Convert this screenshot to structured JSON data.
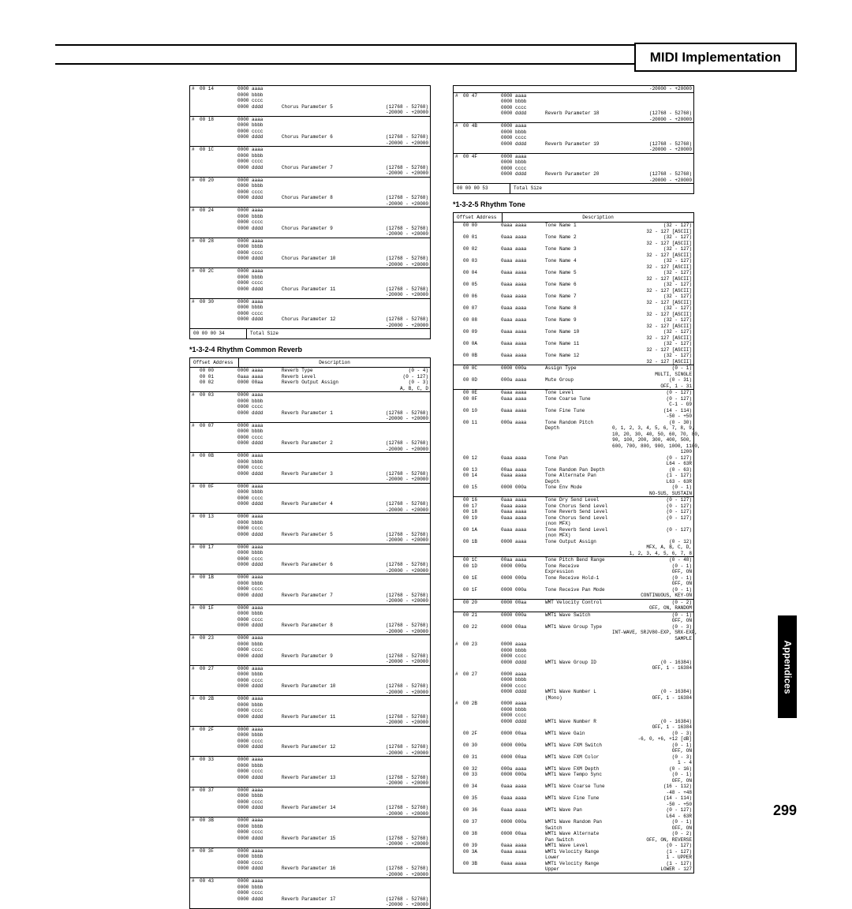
{
  "header_title": "MIDI Implementation",
  "side_tab": "Appendices",
  "page_number": "299",
  "offset_label": "Offset\n   Address",
  "description_label": "Description",
  "rhythm_reverb_title": "*1-3-2-4 Rhythm Common Reverb",
  "rhythm_tone_title": "*1-3-2-5 Rhythm Tone",
  "chorus_block": {
    "rows": [
      {
        "m": "#",
        "o": "00 14",
        "v": [
          "0000 aaaa",
          "0000 bbbb",
          "0000 cccc",
          "0000 dddd"
        ],
        "d": "Chorus Parameter 5",
        "r": "(12768 - 52768)\n-20000 - +20000"
      },
      {
        "m": "#",
        "o": "00 18",
        "v": [
          "0000 aaaa",
          "0000 bbbb",
          "0000 cccc",
          "0000 dddd"
        ],
        "d": "Chorus Parameter 6",
        "r": "(12768 - 52768)\n-20000 - +20000"
      },
      {
        "m": "#",
        "o": "00 1C",
        "v": [
          "0000 aaaa",
          "0000 bbbb",
          "0000 cccc",
          "0000 dddd"
        ],
        "d": "Chorus Parameter 7",
        "r": "(12768 - 52768)\n-20000 - +20000"
      },
      {
        "m": "#",
        "o": "00 20",
        "v": [
          "0000 aaaa",
          "0000 bbbb",
          "0000 cccc",
          "0000 dddd"
        ],
        "d": "Chorus Parameter 8",
        "r": "(12768 - 52768)\n-20000 - +20000"
      },
      {
        "m": "#",
        "o": "00 24",
        "v": [
          "0000 aaaa",
          "0000 bbbb",
          "0000 cccc",
          "0000 dddd"
        ],
        "d": "Chorus Parameter 9",
        "r": "(12768 - 52768)\n-20000 - +20000"
      },
      {
        "m": "#",
        "o": "00 28",
        "v": [
          "0000 aaaa",
          "0000 bbbb",
          "0000 cccc",
          "0000 dddd"
        ],
        "d": "Chorus Parameter 10",
        "r": "(12768 - 52768)\n-20000 - +20000"
      },
      {
        "m": "#",
        "o": "00 2C",
        "v": [
          "0000 aaaa",
          "0000 bbbb",
          "0000 cccc",
          "0000 dddd"
        ],
        "d": "Chorus Parameter 11",
        "r": "(12768 - 52768)\n-20000 - +20000"
      },
      {
        "m": "#",
        "o": "00 30",
        "v": [
          "0000 aaaa",
          "0000 bbbb",
          "0000 cccc",
          "0000 dddd"
        ],
        "d": "Chorus Parameter 12",
        "r": "(12768 - 52768)\n-20000 - +20000"
      }
    ],
    "total_off": "00 00 00 34",
    "total_label": "Total Size"
  },
  "reverb_block": {
    "initial": [
      {
        "o": "00 00",
        "v": "0000 aaaa",
        "d": "Reverb Type",
        "r": "(0 - 4)"
      },
      {
        "o": "00 01",
        "v": "0aaa aaaa",
        "d": "Reverb Level",
        "r": "(0 - 127)"
      },
      {
        "o": "00 02",
        "v": "0000 00aa",
        "d": "Reverb Output Assign",
        "r": "(0 - 3)\nA, B, C, D"
      }
    ],
    "rows": [
      {
        "m": "#",
        "o": "00 03",
        "d": "Reverb Parameter 1"
      },
      {
        "m": "#",
        "o": "00 07",
        "d": "Reverb Parameter 2"
      },
      {
        "m": "#",
        "o": "00 0B",
        "d": "Reverb Parameter 3"
      },
      {
        "m": "#",
        "o": "00 0F",
        "d": "Reverb Parameter 4"
      },
      {
        "m": "#",
        "o": "00 13",
        "d": "Reverb Parameter 5"
      },
      {
        "m": "#",
        "o": "00 17",
        "d": "Reverb Parameter 6"
      },
      {
        "m": "#",
        "o": "00 1B",
        "d": "Reverb Parameter 7"
      },
      {
        "m": "#",
        "o": "00 1F",
        "d": "Reverb Parameter 8"
      },
      {
        "m": "#",
        "o": "00 23",
        "d": "Reverb Parameter 9"
      },
      {
        "m": "#",
        "o": "00 27",
        "d": "Reverb Parameter 10"
      },
      {
        "m": "#",
        "o": "00 2B",
        "d": "Reverb Parameter 11"
      },
      {
        "m": "#",
        "o": "00 2F",
        "d": "Reverb Parameter 12"
      },
      {
        "m": "#",
        "o": "00 33",
        "d": "Reverb Parameter 13"
      },
      {
        "m": "#",
        "o": "00 37",
        "d": "Reverb Parameter 14"
      },
      {
        "m": "#",
        "o": "00 3B",
        "d": "Reverb Parameter 15"
      },
      {
        "m": "#",
        "o": "00 3F",
        "d": "Reverb Parameter 16"
      },
      {
        "m": "#",
        "o": "00 43",
        "d": "Reverb Parameter 17"
      }
    ],
    "vals": [
      "0000 aaaa",
      "0000 bbbb",
      "0000 cccc",
      "0000 dddd"
    ],
    "range": "(12768 - 52768)\n-20000 - +20000"
  },
  "reverb_cont": {
    "lead_range": "-20000 - +20000",
    "rows": [
      {
        "m": "#",
        "o": "00 47",
        "d": "Reverb Parameter 18"
      },
      {
        "m": "#",
        "o": "00 4B",
        "d": "Reverb Parameter 19"
      },
      {
        "m": "#",
        "o": "00 4F",
        "d": "Reverb Parameter 20"
      }
    ],
    "vals": [
      "0000 aaaa",
      "0000 bbbb",
      "0000 cccc",
      "0000 dddd"
    ],
    "range": "(12768 - 52768)\n-20000 - +20000",
    "total_off": "00 00 00 53",
    "total_label": "Total Size"
  },
  "tone_block": {
    "sections": [
      [
        {
          "o": "00 00",
          "v": "0aaa aaaa",
          "d": "Tone Name 1",
          "r": "(32 - 127)\n32 - 127 [ASCII]"
        },
        {
          "o": "00 01",
          "v": "0aaa aaaa",
          "d": "Tone Name 2",
          "r": "(32 - 127)\n32 - 127 [ASCII]"
        },
        {
          "o": "00 02",
          "v": "0aaa aaaa",
          "d": "Tone Name 3",
          "r": "(32 - 127)\n32 - 127 [ASCII]"
        },
        {
          "o": "00 03",
          "v": "0aaa aaaa",
          "d": "Tone Name 4",
          "r": "(32 - 127)\n32 - 127 [ASCII]"
        },
        {
          "o": "00 04",
          "v": "0aaa aaaa",
          "d": "Tone Name 5",
          "r": "(32 - 127)\n32 - 127 [ASCII]"
        },
        {
          "o": "00 05",
          "v": "0aaa aaaa",
          "d": "Tone Name 6",
          "r": "(32 - 127)\n32 - 127 [ASCII]"
        },
        {
          "o": "00 06",
          "v": "0aaa aaaa",
          "d": "Tone Name 7",
          "r": "(32 - 127)\n32 - 127 [ASCII]"
        },
        {
          "o": "00 07",
          "v": "0aaa aaaa",
          "d": "Tone Name 8",
          "r": "(32 - 127)\n32 - 127 [ASCII]"
        },
        {
          "o": "00 08",
          "v": "0aaa aaaa",
          "d": "Tone Name 9",
          "r": "(32 - 127)\n32 - 127 [ASCII]"
        },
        {
          "o": "00 09",
          "v": "0aaa aaaa",
          "d": "Tone Name 10",
          "r": "(32 - 127)\n32 - 127 [ASCII]"
        },
        {
          "o": "00 0A",
          "v": "0aaa aaaa",
          "d": "Tone Name 11",
          "r": "(32 - 127)\n32 - 127 [ASCII]"
        },
        {
          "o": "00 0B",
          "v": "0aaa aaaa",
          "d": "Tone Name 12",
          "r": "(32 - 127)\n32 - 127 [ASCII]"
        }
      ],
      [
        {
          "o": "00 0C",
          "v": "0000 000a",
          "d": "Assign Type",
          "r": "(0 - 1)\nMULTI, SINGLE"
        },
        {
          "o": "00 0D",
          "v": "000a aaaa",
          "d": "Mute Group",
          "r": "(0 - 31)\nOFF, 1 - 31"
        }
      ],
      [
        {
          "o": "00 0E",
          "v": "0aaa aaaa",
          "d": "Tone Level",
          "r": "(0 - 127)"
        },
        {
          "o": "00 0F",
          "v": "0aaa aaaa",
          "d": "Tone Coarse Tune",
          "r": "(0 - 127)\nC-1 - G9"
        },
        {
          "o": "00 10",
          "v": "0aaa aaaa",
          "d": "Tone Fine Tune",
          "r": "(14 - 114)\n-50 - +50"
        },
        {
          "o": "00 11",
          "v": "000a aaaa",
          "d": "Tone Random Pitch Depth",
          "r": "(0 - 30)\n0, 1, 2, 3, 4, 5, 6, 7, 8, 9,\n10, 20, 30, 40, 50, 60, 70, 80,\n90, 100, 200, 300, 400, 500,\n600, 700, 800, 900, 1000, 1100,\n1200"
        },
        {
          "o": "00 12",
          "v": "0aaa aaaa",
          "d": "Tone Pan",
          "r": "(0 - 127)\nL64 - 63R"
        },
        {
          "o": "00 13",
          "v": "00aa aaaa",
          "d": "Tone Random Pan Depth",
          "r": "(0 - 63)"
        },
        {
          "o": "00 14",
          "v": "0aaa aaaa",
          "d": "Tone Alternate Pan Depth",
          "r": "(1 - 127)\nL63 - 63R"
        },
        {
          "o": "00 15",
          "v": "0000 000a",
          "d": "Tone Env Mode",
          "r": "(0 - 1)\nNO-SUS, SUSTAIN"
        }
      ],
      [
        {
          "o": "00 16",
          "v": "0aaa aaaa",
          "d": "Tone Dry Send Level",
          "r": "(0 - 127)"
        },
        {
          "o": "00 17",
          "v": "0aaa aaaa",
          "d": "Tone Chorus Send Level",
          "r": "(0 - 127)"
        },
        {
          "o": "00 18",
          "v": "0aaa aaaa",
          "d": "Tone Reverb Send Level",
          "r": "(0 - 127)"
        },
        {
          "o": "00 19",
          "v": "0aaa aaaa",
          "d": "Tone Chorus Send Level (non MFX)",
          "r": "(0 - 127)"
        },
        {
          "o": "00 1A",
          "v": "0aaa aaaa",
          "d": "Tone Reverb Send Level (non MFX)",
          "r": "(0 - 127)"
        },
        {
          "o": "00 1B",
          "v": "0000 aaaa",
          "d": "Tone Output Assign",
          "r": "(0 - 12)\nMFX, A, B, C, D,\n1, 2, 3, 4, 5, 6, 7, 8"
        }
      ],
      [
        {
          "o": "00 1C",
          "v": "00aa aaaa",
          "d": "Tone Pitch Bend Range",
          "r": "(0 - 48)"
        },
        {
          "o": "00 1D",
          "v": "0000 000a",
          "d": "Tone Receive Expression",
          "r": "(0 - 1)\nOFF, ON"
        },
        {
          "o": "00 1E",
          "v": "0000 000a",
          "d": "Tone Receive Hold-1",
          "r": "(0 - 1)\nOFF, ON"
        },
        {
          "o": "00 1F",
          "v": "0000 000a",
          "d": "Tone Receive Pan Mode",
          "r": "(0 - 1)\nCONTINUOUS, KEY-ON"
        }
      ],
      [
        {
          "o": "00 20",
          "v": "0000 00aa",
          "d": "WMT Velocity Control",
          "r": "(0 - 2)\nOFF, ON, RANDOM"
        }
      ],
      [
        {
          "o": "00 21",
          "v": "0000 000a",
          "d": "WMT1 Wave Switch",
          "r": "(0 - 1)\nOFF, ON"
        },
        {
          "o": "00 22",
          "v": "0000 00aa",
          "d": "WMT1 Wave Group Type",
          "r": "(0 - 3)\nINT-WAVE, SRJV80-EXP, SRX-EXP,\nSAMPLE"
        },
        {
          "m": "#",
          "o": "00 23",
          "v": "0000 aaaa\n0000 bbbb\n0000 cccc\n0000 dddd",
          "d": "WMT1 Wave Group ID",
          "r": "(0 - 16384)\nOFF, 1 - 16384"
        },
        {
          "m": "#",
          "o": "00 27",
          "v": "0000 aaaa\n0000 bbbb\n0000 cccc\n0000 dddd",
          "d": "WMT1 Wave Number L (Mono)",
          "r": "(0 - 16384)\nOFF, 1 - 16384"
        },
        {
          "m": "#",
          "o": "00 2B",
          "v": "0000 aaaa\n0000 bbbb\n0000 cccc\n0000 dddd",
          "d": "WMT1 Wave Number R",
          "r": "(0 - 16384)\nOFF, 1 - 16384"
        },
        {
          "o": "00 2F",
          "v": "0000 00aa",
          "d": "WMT1 Wave Gain",
          "r": "(0 - 3)\n-6, 0, +6, +12 [dB]"
        },
        {
          "o": "00 30",
          "v": "0000 000a",
          "d": "WMT1 Wave FXM Switch",
          "r": "(0 - 1)\nOFF, ON"
        },
        {
          "o": "00 31",
          "v": "0000 00aa",
          "d": "WMT1 Wave FXM Color",
          "r": "(0 - 3)\n1 - 4"
        },
        {
          "o": "00 32",
          "v": "000a aaaa",
          "d": "WMT1 Wave FXM Depth",
          "r": "(0 - 16)"
        },
        {
          "o": "00 33",
          "v": "0000 000a",
          "d": "WMT1 Wave Tempo Sync",
          "r": "(0 - 1)\nOFF, ON"
        },
        {
          "o": "00 34",
          "v": "0aaa aaaa",
          "d": "WMT1 Wave Coarse Tune",
          "r": "(16 - 112)\n-48 - +48"
        },
        {
          "o": "00 35",
          "v": "0aaa aaaa",
          "d": "WMT1 Wave Fine Tune",
          "r": "(14 - 114)\n-50 - +50"
        },
        {
          "o": "00 36",
          "v": "0aaa aaaa",
          "d": "WMT1 Wave Pan",
          "r": "(0 - 127)\nL64 - 63R"
        },
        {
          "o": "00 37",
          "v": "0000 000a",
          "d": "WMT1 Wave Random Pan Switch",
          "r": "(0 - 1)\nOFF, ON"
        },
        {
          "o": "00 38",
          "v": "0000 00aa",
          "d": "WMT1 Wave Alternate Pan Switch",
          "r": "(0 - 2)\nOFF, ON, REVERSE"
        },
        {
          "o": "00 39",
          "v": "0aaa aaaa",
          "d": "WMT1 Wave Level",
          "r": "(0 - 127)"
        },
        {
          "o": "00 3A",
          "v": "0aaa aaaa",
          "d": "WMT1 Velocity Range Lower",
          "r": "(1 - 127)\n1 - UPPER"
        },
        {
          "o": "00 3B",
          "v": "0aaa aaaa",
          "d": "WMT1 Velocity Range Upper",
          "r": "(1 - 127)\nLOWER - 127"
        }
      ]
    ]
  }
}
